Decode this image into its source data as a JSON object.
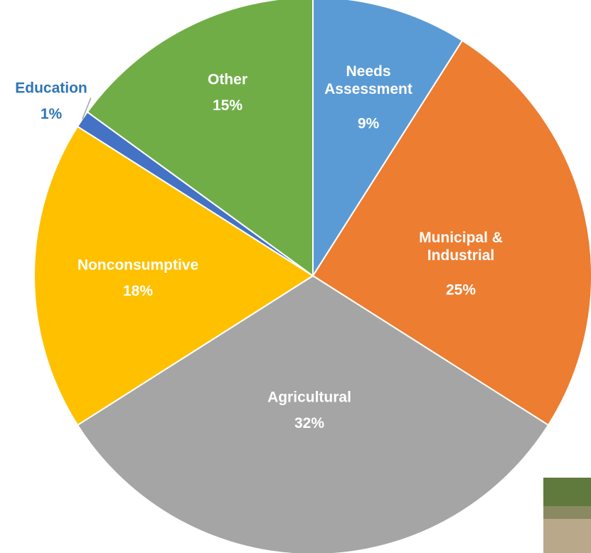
{
  "chart_data": {
    "type": "pie",
    "categories": [
      "Needs Assessment",
      "Municipal & Industrial",
      "Agricultural",
      "Nonconsumptive",
      "Education",
      "Other"
    ],
    "values": [
      9,
      25,
      32,
      18,
      1,
      15
    ],
    "value_labels": [
      "9%",
      "25%",
      "32%",
      "18%",
      "1%",
      "15%"
    ],
    "colors": [
      "#5b9bd5",
      "#ed7d31",
      "#a5a5a5",
      "#ffc000",
      "#4472c4",
      "#70ad47"
    ]
  }
}
